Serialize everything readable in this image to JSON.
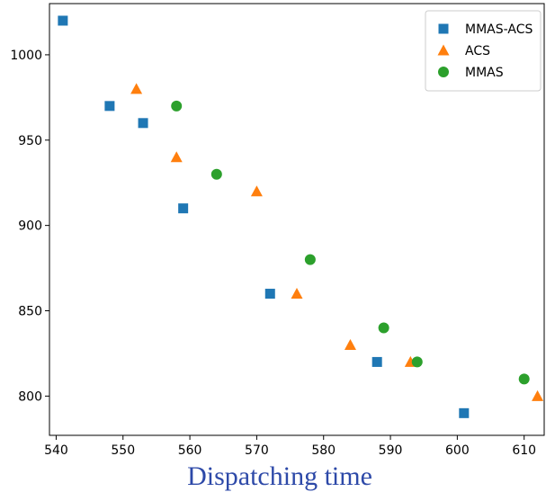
{
  "chart_data": {
    "type": "scatter",
    "title": "",
    "xlabel": "Dispatching time",
    "ylabel": "",
    "xlim": [
      539,
      613
    ],
    "ylim": [
      777,
      1030
    ],
    "xticks": [
      540,
      550,
      560,
      570,
      580,
      590,
      600,
      610
    ],
    "yticks": [
      800,
      850,
      900,
      950,
      1000
    ],
    "grid": false,
    "legend_position": "top-right",
    "series": [
      {
        "name": "MMAS-ACS",
        "marker": "square",
        "color": "#1f77b4",
        "points": [
          {
            "x": 541,
            "y": 1020
          },
          {
            "x": 548,
            "y": 970
          },
          {
            "x": 553,
            "y": 960
          },
          {
            "x": 559,
            "y": 910
          },
          {
            "x": 572,
            "y": 860
          },
          {
            "x": 588,
            "y": 820
          },
          {
            "x": 601,
            "y": 790
          }
        ]
      },
      {
        "name": "ACS",
        "marker": "triangle",
        "color": "#ff7f0e",
        "points": [
          {
            "x": 552,
            "y": 980
          },
          {
            "x": 558,
            "y": 940
          },
          {
            "x": 570,
            "y": 920
          },
          {
            "x": 576,
            "y": 860
          },
          {
            "x": 584,
            "y": 830
          },
          {
            "x": 593,
            "y": 820
          },
          {
            "x": 612,
            "y": 800
          }
        ]
      },
      {
        "name": "MMAS",
        "marker": "circle",
        "color": "#2ca02c",
        "points": [
          {
            "x": 558,
            "y": 970
          },
          {
            "x": 564,
            "y": 930
          },
          {
            "x": 578,
            "y": 880
          },
          {
            "x": 589,
            "y": 840
          },
          {
            "x": 594,
            "y": 820
          },
          {
            "x": 610,
            "y": 810
          }
        ]
      }
    ]
  }
}
